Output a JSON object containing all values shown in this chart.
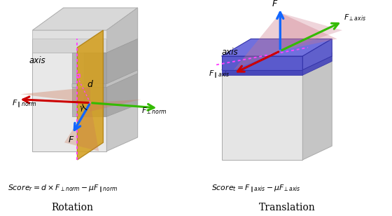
{
  "title_left": "Rotation",
  "title_right": "Translation",
  "formula_left": "$Score_r = d \\times F_{\\perp norm} - \\mu F_{\\parallel norm}$",
  "formula_right": "$Score_t = F_{\\parallel axis} - \\mu F_{\\perp axis}$",
  "bg_color": "#ffffff",
  "arrow_red": "#cc0000",
  "arrow_blue": "#1166ff",
  "arrow_green": "#33bb00",
  "axis_color": "#ff00ff",
  "figsize": [
    5.6,
    3.08
  ],
  "dpi": 100
}
